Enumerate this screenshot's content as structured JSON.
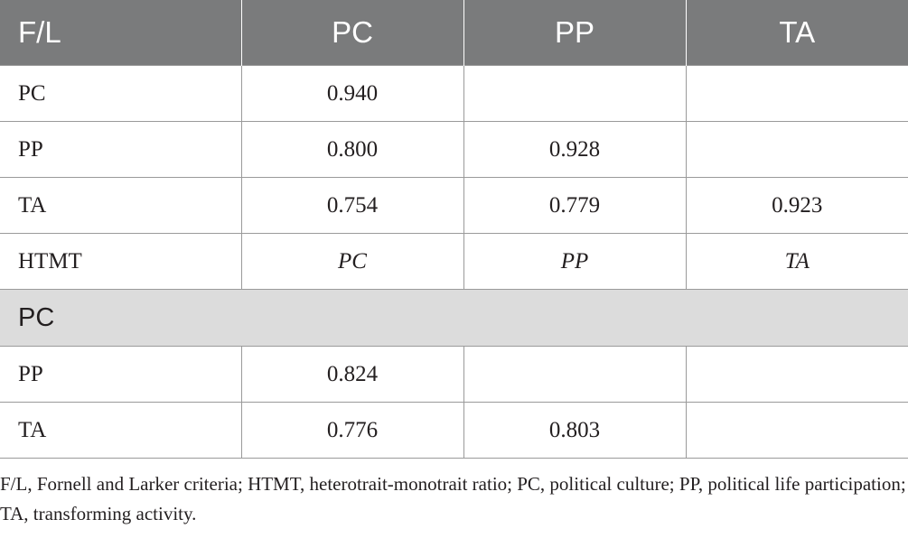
{
  "table": {
    "headers": [
      "F/L",
      "PC",
      "PP",
      "TA"
    ],
    "rows": [
      {
        "label": "PC",
        "cells": [
          "0.940",
          "",
          ""
        ],
        "italic": false
      },
      {
        "label": "PP",
        "cells": [
          "0.800",
          "0.928",
          ""
        ],
        "italic": false
      },
      {
        "label": "TA",
        "cells": [
          "0.754",
          "0.779",
          "0.923"
        ],
        "italic": false
      },
      {
        "label": "HTMT",
        "cells": [
          "PC",
          "PP",
          "TA"
        ],
        "italic": true
      }
    ],
    "section_label": "PC",
    "section_rows": [
      {
        "label": "PP",
        "cells": [
          "0.824",
          "",
          ""
        ]
      },
      {
        "label": "TA",
        "cells": [
          "0.776",
          "0.803",
          ""
        ]
      }
    ]
  },
  "footnote": "F/L, Fornell and Larker criteria; HTMT, heterotrait-monotrait ratio; PC, political culture; PP, political life participation; TA, transforming activity."
}
